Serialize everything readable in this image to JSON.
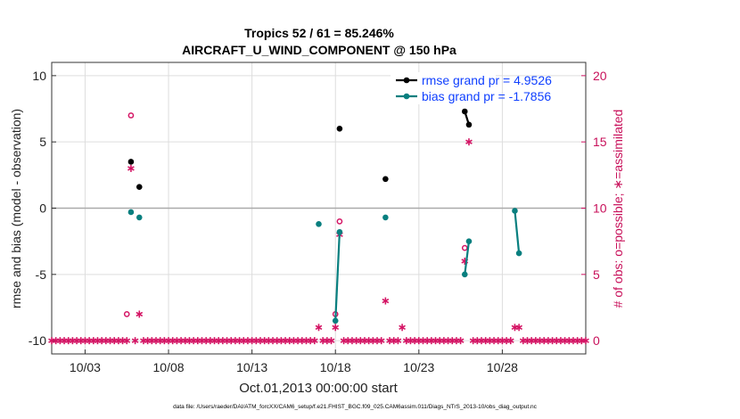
{
  "chart_data": {
    "type": "line",
    "title": "Tropics 52 / 61 = 85.246%",
    "subtitle": "AIRCRAFT_U_WIND_COMPONENT @ 150 hPa",
    "xlabel": "Oct.01,2013 00:00:00 start",
    "ylabel": "rmse and bias (model - observation)",
    "y2label": "# of obs: o=possible; ∗=assimilated",
    "xlim": [
      1,
      33
    ],
    "ylim": [
      -11,
      11
    ],
    "y2lim": [
      -1,
      21
    ],
    "x_ticks": [
      {
        "x": 3,
        "label": "10/03"
      },
      {
        "x": 8,
        "label": "10/08"
      },
      {
        "x": 13,
        "label": "10/13"
      },
      {
        "x": 18,
        "label": "10/18"
      },
      {
        "x": 23,
        "label": "10/23"
      },
      {
        "x": 28,
        "label": "10/28"
      }
    ],
    "y_ticks": [
      10,
      5,
      0,
      -5,
      -10
    ],
    "y2_ticks": [
      20,
      15,
      10,
      5,
      0
    ],
    "grid": true,
    "legend_position": "top-right",
    "series": [
      {
        "name": "rmse grand pr = 4.9526",
        "color": "#000000",
        "points": [
          [
            5.75,
            3.5
          ],
          [
            6.25,
            1.6
          ],
          [
            18.25,
            6.0
          ],
          [
            21.0,
            2.2
          ],
          [
            25.75,
            7.3
          ],
          [
            26.0,
            6.3
          ]
        ],
        "segments": [
          [
            [
              25.75,
              7.3
            ],
            [
              26.0,
              6.3
            ]
          ]
        ]
      },
      {
        "name": "bias grand pr = -1.7856",
        "color": "#087f7f",
        "points": [
          [
            5.75,
            -0.3
          ],
          [
            6.25,
            -0.7
          ],
          [
            17.0,
            -1.2
          ],
          [
            18.0,
            -8.5
          ],
          [
            18.25,
            -1.8
          ],
          [
            21.0,
            -0.7
          ],
          [
            25.75,
            -5.0
          ],
          [
            26.0,
            -2.5
          ],
          [
            28.75,
            -0.2
          ],
          [
            29.0,
            -3.4
          ]
        ],
        "segments": [
          [
            [
              18.0,
              -8.5
            ],
            [
              18.25,
              -1.8
            ]
          ],
          [
            [
              25.75,
              -5.0
            ],
            [
              26.0,
              -2.5
            ]
          ],
          [
            [
              28.75,
              -0.2
            ],
            [
              29.0,
              -3.4
            ]
          ]
        ]
      }
    ],
    "obs_possible": [
      [
        5.5,
        2
      ],
      [
        5.75,
        17
      ],
      [
        18.0,
        2
      ],
      [
        18.25,
        9
      ],
      [
        25.75,
        7
      ]
    ],
    "obs_assimilated_nonzero": [
      [
        5.75,
        13
      ],
      [
        6.25,
        2
      ],
      [
        17.0,
        1
      ],
      [
        18.0,
        1
      ],
      [
        18.25,
        8
      ],
      [
        21.0,
        3
      ],
      [
        22.0,
        1
      ],
      [
        25.75,
        6
      ],
      [
        26.0,
        15
      ],
      [
        28.75,
        1
      ],
      [
        29.0,
        1
      ]
    ],
    "obs_zero_range": [
      1,
      33
    ],
    "obs_zero_step": 0.25,
    "colors": {
      "obs": "#d41464",
      "grid": "#dddddd",
      "zero_line": "#aaaaaa"
    }
  },
  "footer": "data file: /Users/raeder/DAI/ATM_forcXX/CAM6_setup/f.e21.FHIST_BGC.f09_025.CAM6assim.011/Diags_NTrS_2013-10/obs_diag_output.nc"
}
